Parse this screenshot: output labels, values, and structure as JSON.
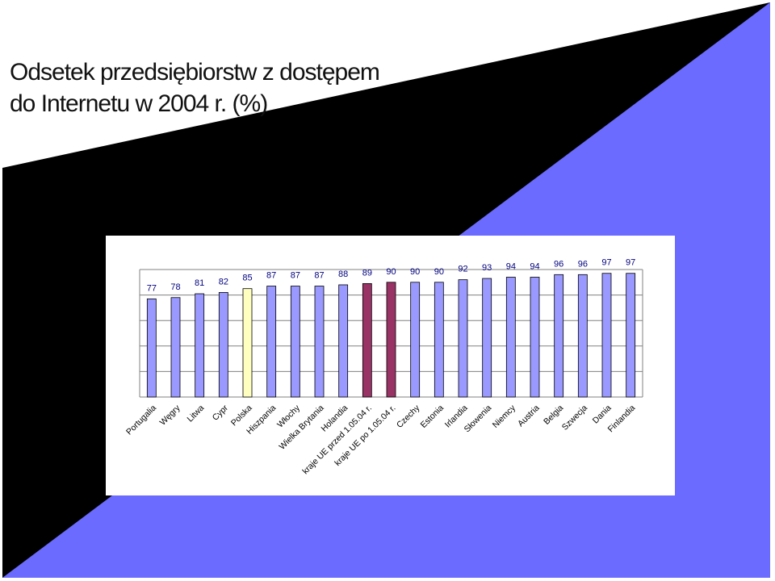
{
  "slide": {
    "title_line1": "Odsetek przedsiębiorstw z dostępem",
    "title_line2": "do Internetu w 2004 r. (%)",
    "colors": {
      "background": "#000000",
      "panel": "#ffffff",
      "accent_triangle": "#6b6bff",
      "title_band": "#ffffff"
    }
  },
  "chart_data": {
    "type": "bar",
    "title": "",
    "xlabel": "",
    "ylabel": "",
    "ylim": [
      0,
      100
    ],
    "grid": true,
    "legend": "none",
    "categories": [
      "Portugalia",
      "Węgry",
      "Litwa",
      "Cypr",
      "Polska",
      "Hiszpania",
      "Włochy",
      "Wielka Brytania",
      "Holandia",
      "kraje UE przed 1.05.04 r.",
      "kraje UE po 1.05.04 r.",
      "Czechy",
      "Estonia",
      "Irlandia",
      "Słowenia",
      "Niemcy",
      "Austria",
      "Belgia",
      "Szwecja",
      "Dania",
      "Finlandia"
    ],
    "values": [
      77,
      78,
      81,
      82,
      85,
      87,
      87,
      87,
      88,
      89,
      90,
      90,
      90,
      92,
      93,
      94,
      94,
      96,
      96,
      97,
      97
    ],
    "colors": [
      "#9999ff",
      "#9999ff",
      "#9999ff",
      "#9999ff",
      "#ffffc0",
      "#9999ff",
      "#9999ff",
      "#9999ff",
      "#9999ff",
      "#993366",
      "#993366",
      "#9999ff",
      "#9999ff",
      "#9999ff",
      "#9999ff",
      "#9999ff",
      "#9999ff",
      "#9999ff",
      "#9999ff",
      "#9999ff",
      "#9999ff"
    ]
  }
}
